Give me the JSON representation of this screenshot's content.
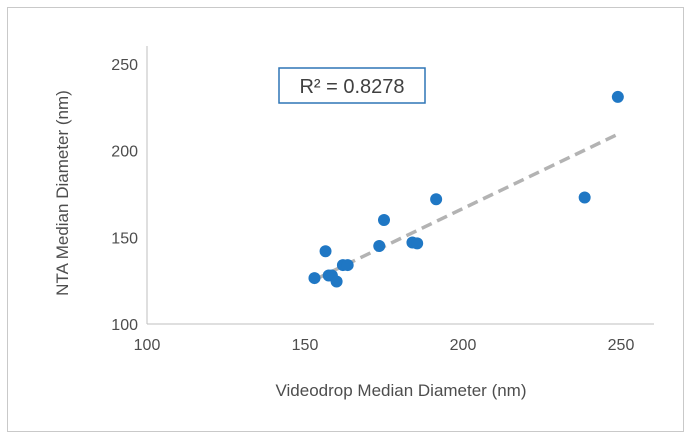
{
  "chart_data": {
    "type": "scatter",
    "xlabel": "Videodrop Median Diameter (nm)",
    "ylabel": "NTA Median Diameter (nm)",
    "xlim": [
      100,
      260
    ],
    "ylim": [
      100,
      250
    ],
    "xticks": [
      100,
      150,
      200,
      250
    ],
    "yticks": [
      100,
      150,
      200,
      250
    ],
    "grid": false,
    "series": [
      {
        "color": "#1f77c4",
        "points": [
          {
            "x": 153,
            "y": 126.5
          },
          {
            "x": 156.5,
            "y": 142
          },
          {
            "x": 157.5,
            "y": 128
          },
          {
            "x": 158.5,
            "y": 128
          },
          {
            "x": 160,
            "y": 124.5
          },
          {
            "x": 162,
            "y": 134
          },
          {
            "x": 163.5,
            "y": 134
          },
          {
            "x": 173.5,
            "y": 145
          },
          {
            "x": 175,
            "y": 160
          },
          {
            "x": 184,
            "y": 147
          },
          {
            "x": 185.5,
            "y": 146.5
          },
          {
            "x": 191.5,
            "y": 172
          },
          {
            "x": 238.5,
            "y": 173
          },
          {
            "x": 249,
            "y": 231
          }
        ]
      }
    ],
    "trendline": {
      "type": "linear",
      "style": "dashed",
      "color": "#b3b3b3",
      "x_range": [
        153,
        249
      ],
      "y_range": [
        125.5,
        209.5
      ]
    },
    "annotation": {
      "text": "R² = 0.8278",
      "border_color": "#2e75b6"
    },
    "legend": "none"
  }
}
